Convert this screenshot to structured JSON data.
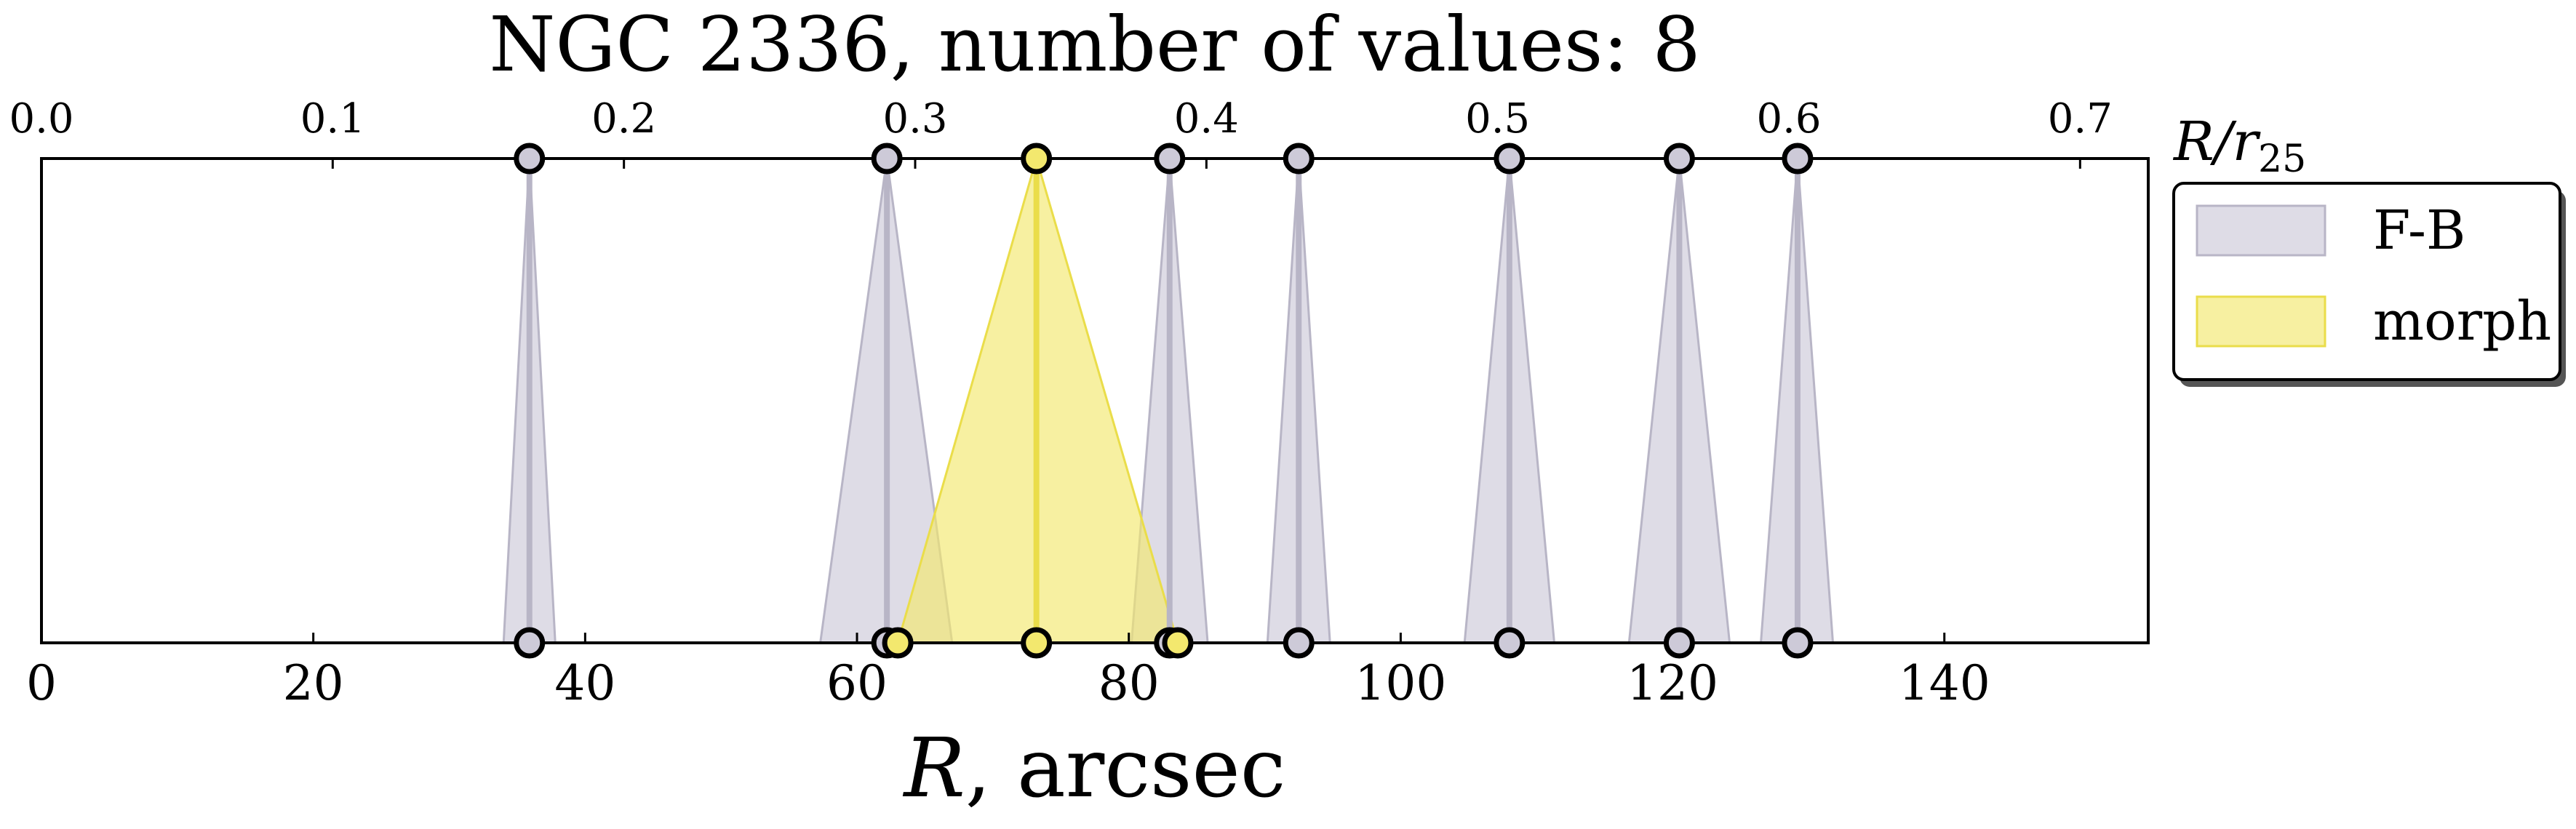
{
  "chart_data": {
    "type": "area",
    "title": "NGC 2336, number of values: 8",
    "xlabel_main": "R",
    "xlabel_unit": ", arcsec",
    "top_axis_label_main": "R/r",
    "top_axis_label_sub": "25",
    "xlim": [
      0,
      155
    ],
    "xticks": [
      0,
      20,
      40,
      60,
      80,
      100,
      120,
      140
    ],
    "top_xlim": [
      0.0,
      0.7234
    ],
    "top_xticks": [
      "0.0",
      "0.1",
      "0.2",
      "0.3",
      "0.4",
      "0.5",
      "0.6",
      "0.7"
    ],
    "top_tick_values": [
      0.0,
      0.1,
      0.2,
      0.3,
      0.4,
      0.5,
      0.6,
      0.7
    ],
    "legend": {
      "position": "outside-right-top"
    },
    "series": [
      {
        "name": "F-B",
        "color": "#cdcad8",
        "edge_color": "#b8b5c6",
        "intervals": [
          {
            "center": 35.9,
            "low": 34.0,
            "high": 37.8
          },
          {
            "center": 62.2,
            "low": 57.3,
            "high": 67.0
          },
          {
            "center": 83.0,
            "low": 80.2,
            "high": 85.8
          },
          {
            "center": 92.5,
            "low": 90.2,
            "high": 94.8
          },
          {
            "center": 108.0,
            "low": 104.7,
            "high": 111.3
          },
          {
            "center": 120.5,
            "low": 116.8,
            "high": 124.2
          },
          {
            "center": 129.2,
            "low": 126.5,
            "high": 131.8
          }
        ]
      },
      {
        "name": "morph",
        "color": "#f3e86e",
        "edge_color": "#eadd4a",
        "intervals": [
          {
            "center": 73.2,
            "low": 63.0,
            "high": 83.6
          }
        ]
      }
    ]
  }
}
